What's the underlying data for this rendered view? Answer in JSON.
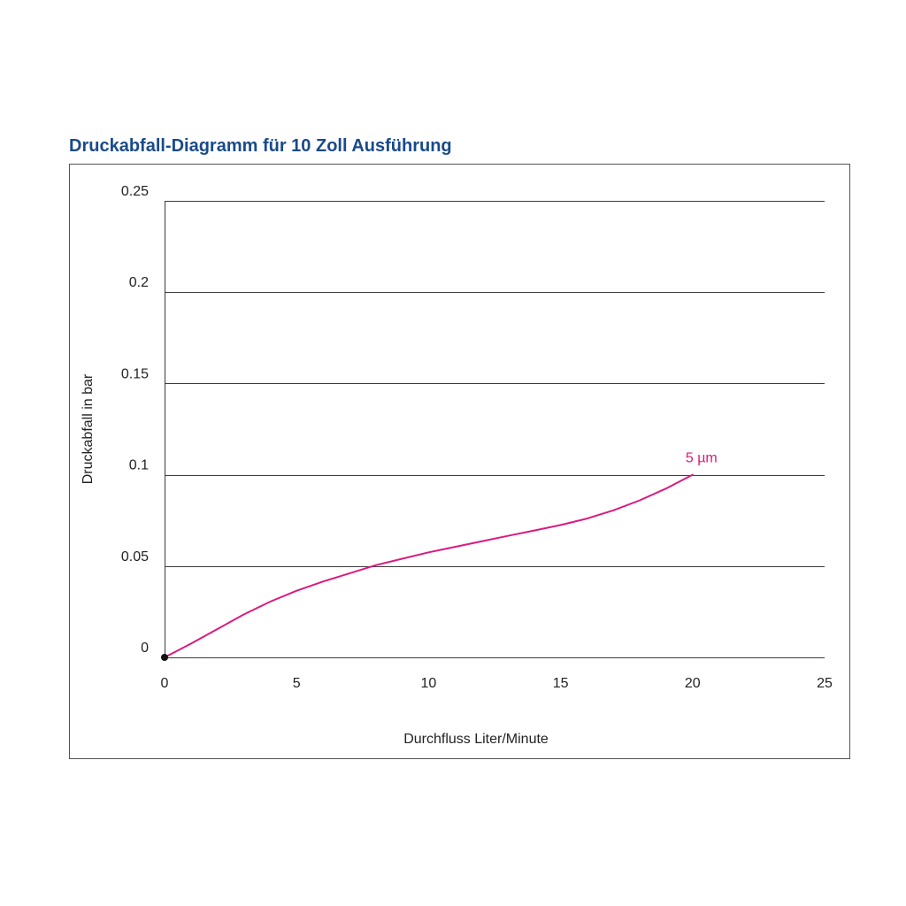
{
  "colors": {
    "title": "#1a4a8a",
    "series": "#d81b7f",
    "grid": "#3c3c3c",
    "frame": "#555555",
    "text": "#222222"
  },
  "chart_data": {
    "type": "line",
    "title": "Druckabfall-Diagramm für 10 Zoll Ausführung",
    "xlabel": "Durchfluss Liter/Minute",
    "ylabel": "Druckabfall in bar",
    "xlim": [
      0,
      25
    ],
    "ylim": [
      0,
      0.25
    ],
    "x_ticks": [
      0,
      5,
      10,
      15,
      20,
      25
    ],
    "x_tick_labels": [
      "0",
      "5",
      "10",
      "15",
      "20",
      "25"
    ],
    "y_ticks": [
      0,
      0.05,
      0.1,
      0.15,
      0.2,
      0.25
    ],
    "y_tick_labels": [
      "0",
      "0.05",
      "0.1",
      "0.15",
      "0.2",
      "0.25"
    ],
    "grid": "horizontal",
    "series": [
      {
        "name": "5 µm",
        "x": [
          0,
          1,
          2,
          3,
          4,
          5,
          6,
          7,
          8,
          9,
          10,
          11,
          12,
          13,
          14,
          15,
          16,
          17,
          18,
          19,
          20
        ],
        "y": [
          0,
          0.0075,
          0.0155,
          0.0235,
          0.0305,
          0.0365,
          0.0415,
          0.046,
          0.0505,
          0.054,
          0.0575,
          0.0605,
          0.0635,
          0.0665,
          0.0695,
          0.0725,
          0.076,
          0.0805,
          0.086,
          0.0925,
          0.1
        ]
      }
    ]
  }
}
